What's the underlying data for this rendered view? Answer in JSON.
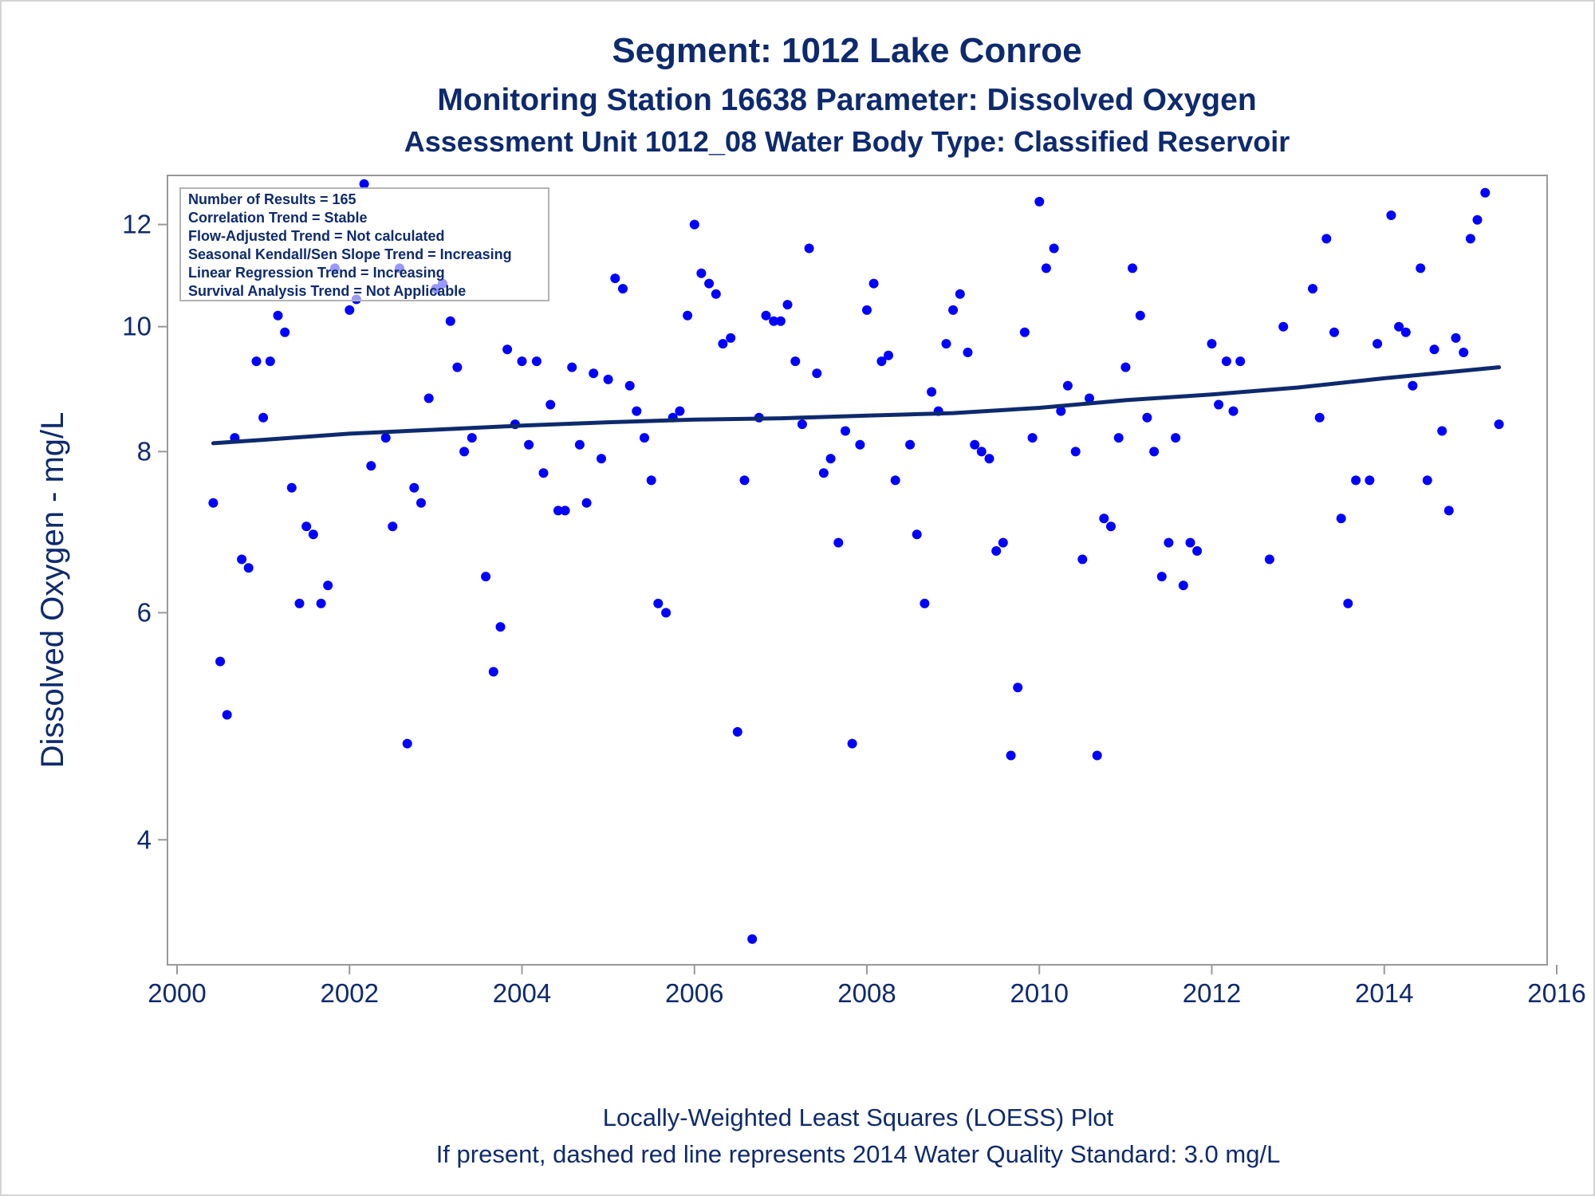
{
  "chart_data": {
    "type": "scatter",
    "title": "Segment: 1012  Lake Conroe",
    "subtitle": "Monitoring Station 16638 Parameter: Dissolved Oxygen",
    "subtitle2": "Assessment Unit 1012_08   Water Body Type: Classified Reservoir",
    "xlabel": "",
    "ylabel": "Dissolved Oxygen - mg/L",
    "footnote1": "Locally-Weighted Least Squares (LOESS) Plot",
    "footnote2": "If present, dashed red line represents 2014 Water Quality Standard: 3.0 mg/L",
    "y_scale": "log",
    "xlim": [
      2000,
      2016
    ],
    "ylim": [
      3.2,
      13.1
    ],
    "x_ticks": [
      2000,
      2002,
      2004,
      2006,
      2008,
      2010,
      2012,
      2014,
      2016
    ],
    "y_ticks": [
      4,
      6,
      8,
      10,
      12
    ],
    "grid": false,
    "legend": "none",
    "colors": {
      "points": "#0000ff",
      "trend": "#0e2a6e",
      "text": "#0e2a6e",
      "axis": "#999999"
    },
    "stats_box": {
      "placement": "top-left",
      "lines": [
        "Number of Results = 165",
        "Correlation Trend = Stable",
        "Flow-Adjusted Trend = Not calculated",
        "Seasonal Kendall/Sen Slope Trend = Increasing",
        "Linear Regression Trend = Increasing",
        "Survival Analysis Trend = Not Applicable"
      ]
    },
    "series": [
      {
        "type": "scatter",
        "points": [
          [
            2000.42,
            7.3
          ],
          [
            2000.5,
            5.5
          ],
          [
            2000.58,
            5.0
          ],
          [
            2000.67,
            8.2
          ],
          [
            2000.75,
            6.6
          ],
          [
            2000.83,
            6.5
          ],
          [
            2000.92,
            9.4
          ],
          [
            2001.0,
            8.5
          ],
          [
            2001.08,
            9.4
          ],
          [
            2001.17,
            10.2
          ],
          [
            2001.25,
            9.9
          ],
          [
            2001.33,
            7.5
          ],
          [
            2001.42,
            6.1
          ],
          [
            2001.5,
            7.0
          ],
          [
            2001.58,
            6.9
          ],
          [
            2001.67,
            6.1
          ],
          [
            2001.75,
            6.3
          ],
          [
            2001.83,
            11.1
          ],
          [
            2002.0,
            10.3
          ],
          [
            2002.08,
            10.5
          ],
          [
            2002.17,
            12.9
          ],
          [
            2002.25,
            7.8
          ],
          [
            2002.42,
            8.2
          ],
          [
            2002.5,
            7.0
          ],
          [
            2002.58,
            11.1
          ],
          [
            2002.67,
            4.75
          ],
          [
            2002.75,
            7.5
          ],
          [
            2002.83,
            7.3
          ],
          [
            2002.92,
            8.8
          ],
          [
            2003.0,
            10.7
          ],
          [
            2003.08,
            10.8
          ],
          [
            2003.17,
            10.1
          ],
          [
            2003.25,
            9.3
          ],
          [
            2003.33,
            8.0
          ],
          [
            2003.42,
            8.2
          ],
          [
            2003.58,
            6.4
          ],
          [
            2003.67,
            5.4
          ],
          [
            2003.75,
            5.85
          ],
          [
            2003.83,
            9.6
          ],
          [
            2003.92,
            8.4
          ],
          [
            2004.0,
            9.4
          ],
          [
            2004.08,
            8.1
          ],
          [
            2004.17,
            9.4
          ],
          [
            2004.25,
            7.7
          ],
          [
            2004.33,
            8.7
          ],
          [
            2004.42,
            7.2
          ],
          [
            2004.5,
            7.2
          ],
          [
            2004.58,
            9.3
          ],
          [
            2004.67,
            8.1
          ],
          [
            2004.75,
            7.3
          ],
          [
            2004.83,
            9.2
          ],
          [
            2004.92,
            7.9
          ],
          [
            2005.0,
            9.1
          ],
          [
            2005.08,
            10.9
          ],
          [
            2005.17,
            10.7
          ],
          [
            2005.25,
            9.0
          ],
          [
            2005.33,
            8.6
          ],
          [
            2005.42,
            8.2
          ],
          [
            2005.5,
            7.6
          ],
          [
            2005.58,
            6.1
          ],
          [
            2005.67,
            6.0
          ],
          [
            2005.75,
            8.5
          ],
          [
            2005.83,
            8.6
          ],
          [
            2005.92,
            10.2
          ],
          [
            2006.0,
            12.0
          ],
          [
            2006.08,
            11.0
          ],
          [
            2006.17,
            10.8
          ],
          [
            2006.25,
            10.6
          ],
          [
            2006.33,
            9.7
          ],
          [
            2006.42,
            9.8
          ],
          [
            2006.5,
            4.85
          ],
          [
            2006.58,
            7.6
          ],
          [
            2006.67,
            3.35
          ],
          [
            2006.75,
            8.5
          ],
          [
            2006.83,
            10.2
          ],
          [
            2006.92,
            10.1
          ],
          [
            2007.0,
            10.1
          ],
          [
            2007.08,
            10.4
          ],
          [
            2007.17,
            9.4
          ],
          [
            2007.25,
            8.4
          ],
          [
            2007.33,
            11.5
          ],
          [
            2007.42,
            9.2
          ],
          [
            2007.5,
            7.7
          ],
          [
            2007.58,
            7.9
          ],
          [
            2007.67,
            6.8
          ],
          [
            2007.75,
            8.3
          ],
          [
            2007.83,
            4.75
          ],
          [
            2007.92,
            8.1
          ],
          [
            2008.0,
            10.3
          ],
          [
            2008.08,
            10.8
          ],
          [
            2008.17,
            9.4
          ],
          [
            2008.25,
            9.5
          ],
          [
            2008.33,
            7.6
          ],
          [
            2008.5,
            8.1
          ],
          [
            2008.58,
            6.9
          ],
          [
            2008.67,
            6.1
          ],
          [
            2008.75,
            8.9
          ],
          [
            2008.83,
            8.6
          ],
          [
            2008.92,
            9.7
          ],
          [
            2009.0,
            10.3
          ],
          [
            2009.08,
            10.6
          ],
          [
            2009.17,
            9.55
          ],
          [
            2009.25,
            8.1
          ],
          [
            2009.33,
            8.0
          ],
          [
            2009.42,
            7.9
          ],
          [
            2009.5,
            6.7
          ],
          [
            2009.58,
            6.8
          ],
          [
            2009.67,
            4.65
          ],
          [
            2009.75,
            5.25
          ],
          [
            2009.83,
            9.9
          ],
          [
            2009.92,
            8.2
          ],
          [
            2010.0,
            12.5
          ],
          [
            2010.08,
            11.1
          ],
          [
            2010.17,
            11.5
          ],
          [
            2010.25,
            8.6
          ],
          [
            2010.33,
            9.0
          ],
          [
            2010.42,
            8.0
          ],
          [
            2010.5,
            6.6
          ],
          [
            2010.58,
            8.8
          ],
          [
            2010.67,
            4.65
          ],
          [
            2010.75,
            7.1
          ],
          [
            2010.83,
            7.0
          ],
          [
            2010.92,
            8.2
          ],
          [
            2011.0,
            9.3
          ],
          [
            2011.08,
            11.1
          ],
          [
            2011.17,
            10.2
          ],
          [
            2011.25,
            8.5
          ],
          [
            2011.33,
            8.0
          ],
          [
            2011.42,
            6.4
          ],
          [
            2011.5,
            6.8
          ],
          [
            2011.58,
            8.2
          ],
          [
            2011.67,
            6.3
          ],
          [
            2011.75,
            6.8
          ],
          [
            2011.83,
            6.7
          ],
          [
            2012.0,
            9.7
          ],
          [
            2012.08,
            8.7
          ],
          [
            2012.17,
            9.4
          ],
          [
            2012.25,
            8.6
          ],
          [
            2012.33,
            9.4
          ],
          [
            2012.67,
            6.6
          ],
          [
            2012.83,
            10.0
          ],
          [
            2013.17,
            10.7
          ],
          [
            2013.25,
            8.5
          ],
          [
            2013.33,
            11.7
          ],
          [
            2013.42,
            9.9
          ],
          [
            2013.5,
            7.1
          ],
          [
            2013.58,
            6.1
          ],
          [
            2013.67,
            7.6
          ],
          [
            2013.83,
            7.6
          ],
          [
            2013.92,
            9.7
          ],
          [
            2014.08,
            12.2
          ],
          [
            2014.17,
            10.0
          ],
          [
            2014.25,
            9.9
          ],
          [
            2014.33,
            9.0
          ],
          [
            2014.42,
            11.1
          ],
          [
            2014.5,
            7.6
          ],
          [
            2014.58,
            9.6
          ],
          [
            2014.67,
            8.3
          ],
          [
            2014.75,
            7.2
          ],
          [
            2014.83,
            9.8
          ],
          [
            2014.92,
            9.55
          ],
          [
            2015.0,
            11.7
          ],
          [
            2015.08,
            12.1
          ],
          [
            2015.17,
            12.7
          ],
          [
            2015.33,
            8.4
          ]
        ]
      },
      {
        "type": "line",
        "points": [
          [
            2000.42,
            8.12
          ],
          [
            2001.0,
            8.17
          ],
          [
            2002.0,
            8.26
          ],
          [
            2003.0,
            8.32
          ],
          [
            2004.0,
            8.38
          ],
          [
            2005.0,
            8.43
          ],
          [
            2006.0,
            8.47
          ],
          [
            2007.0,
            8.49
          ],
          [
            2008.0,
            8.53
          ],
          [
            2009.0,
            8.57
          ],
          [
            2010.0,
            8.65
          ],
          [
            2011.0,
            8.77
          ],
          [
            2012.0,
            8.86
          ],
          [
            2013.0,
            8.97
          ],
          [
            2014.0,
            9.12
          ],
          [
            2015.33,
            9.3
          ]
        ]
      }
    ]
  }
}
